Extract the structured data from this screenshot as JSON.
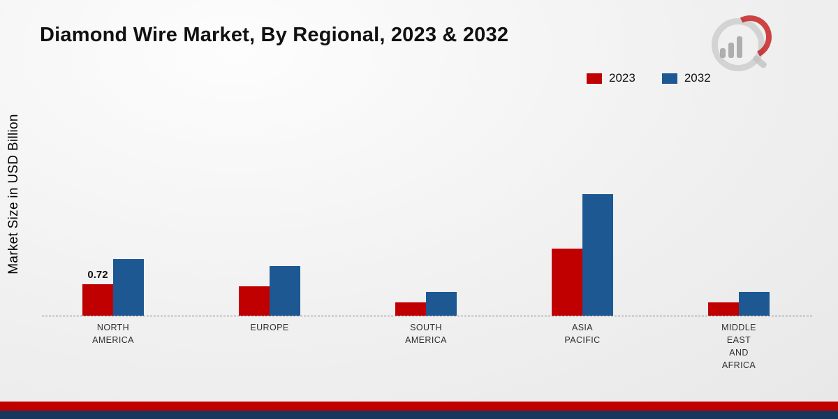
{
  "title": "Diamond Wire Market, By Regional, 2023 & 2032",
  "ylabel": "Market Size in USD Billion",
  "legend": [
    {
      "label": "2023",
      "color": "#c00000"
    },
    {
      "label": "2032",
      "color": "#1d5893"
    }
  ],
  "colors": {
    "series_2023": "#c00000",
    "series_2032": "#1d5893",
    "footer_red": "#c00000",
    "footer_navy": "#17375d"
  },
  "chart_data": {
    "type": "bar",
    "title": "Diamond Wire Market, By Regional, 2023 & 2032",
    "xlabel": "",
    "ylabel": "Market Size in USD Billion",
    "categories": [
      "North America",
      "Europe",
      "South America",
      "Asia Pacific",
      "Middle East and Africa"
    ],
    "tick_labels": [
      "NORTH\nAMERICA",
      "EUROPE",
      "SOUTH\nAMERICA",
      "ASIA\nPACIFIC",
      "MIDDLE\nEAST\nAND\nAFRICA"
    ],
    "series": [
      {
        "name": "2023",
        "color": "#c00000",
        "values": [
          0.72,
          0.68,
          0.3,
          1.55,
          0.3
        ],
        "data_labels": [
          "0.72",
          "",
          "",
          "",
          ""
        ]
      },
      {
        "name": "2032",
        "color": "#1d5893",
        "values": [
          1.3,
          1.15,
          0.55,
          2.8,
          0.55
        ],
        "data_labels": [
          "",
          "",
          "",
          "",
          ""
        ]
      }
    ],
    "ylim": [
      0,
      3
    ],
    "grid": false,
    "axis_style": "dashed-baseline-only",
    "legend_position": "top-right"
  }
}
